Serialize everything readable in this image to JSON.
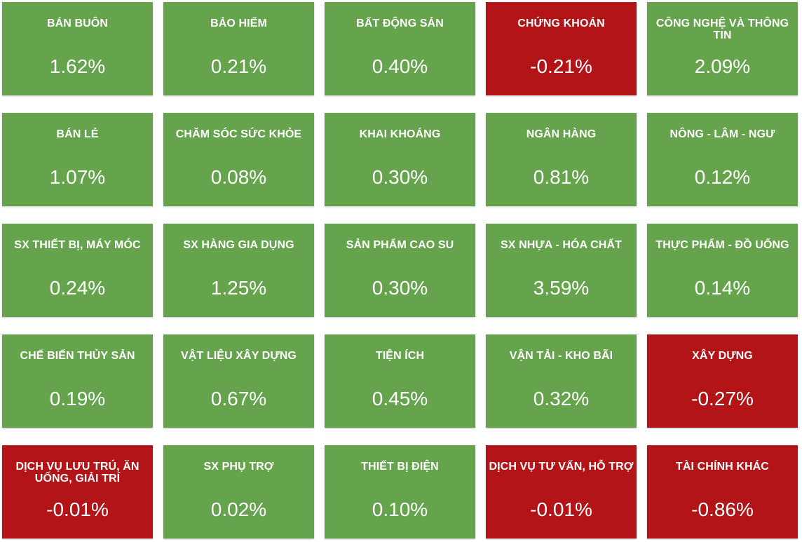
{
  "colors": {
    "up": "#65a34c",
    "down": "#b21417",
    "text": "#ffffff"
  },
  "sectors": [
    {
      "name": "BÁN BUÔN",
      "change": "1.62%",
      "direction": "up"
    },
    {
      "name": "BẢO HIỂM",
      "change": "0.21%",
      "direction": "up"
    },
    {
      "name": "BẤT ĐỘNG SẢN",
      "change": "0.40%",
      "direction": "up"
    },
    {
      "name": "CHỨNG KHOÁN",
      "change": "-0.21%",
      "direction": "down"
    },
    {
      "name": "CÔNG NGHỆ VÀ THÔNG TIN",
      "change": "2.09%",
      "direction": "up"
    },
    {
      "name": "BÁN LẺ",
      "change": "1.07%",
      "direction": "up"
    },
    {
      "name": "CHĂM SÓC SỨC KHỎE",
      "change": "0.08%",
      "direction": "up"
    },
    {
      "name": "KHAI KHOÁNG",
      "change": "0.30%",
      "direction": "up"
    },
    {
      "name": "NGÂN HÀNG",
      "change": "0.81%",
      "direction": "up"
    },
    {
      "name": "NÔNG - LÂM - NGƯ",
      "change": "0.12%",
      "direction": "up"
    },
    {
      "name": "SX THIẾT BỊ, MÁY MÓC",
      "change": "0.24%",
      "direction": "up"
    },
    {
      "name": "SX HÀNG GIA DỤNG",
      "change": "1.25%",
      "direction": "up"
    },
    {
      "name": "SẢN PHẨM CAO SU",
      "change": "0.30%",
      "direction": "up"
    },
    {
      "name": "SX NHỰA - HÓA CHẤT",
      "change": "3.59%",
      "direction": "up"
    },
    {
      "name": "THỰC PHẨM - ĐỒ UỐNG",
      "change": "0.14%",
      "direction": "up"
    },
    {
      "name": "CHẾ BIẾN THỦY SẢN",
      "change": "0.19%",
      "direction": "up"
    },
    {
      "name": "VẬT LIỆU XÂY DỰNG",
      "change": "0.67%",
      "direction": "up"
    },
    {
      "name": "TIỆN ÍCH",
      "change": "0.45%",
      "direction": "up"
    },
    {
      "name": "VẬN TẢI - KHO BÃI",
      "change": "0.32%",
      "direction": "up"
    },
    {
      "name": "XÂY DỰNG",
      "change": "-0.27%",
      "direction": "down"
    },
    {
      "name": "DỊCH VỤ LƯU TRÚ, ĂN UỐNG, GIẢI TRÍ",
      "change": "-0.01%",
      "direction": "down"
    },
    {
      "name": "SX PHỤ TRỢ",
      "change": "0.02%",
      "direction": "up"
    },
    {
      "name": "THIẾT BỊ ĐIỆN",
      "change": "0.10%",
      "direction": "up"
    },
    {
      "name": "DỊCH VỤ TƯ VẤN, HỖ TRỢ",
      "change": "-0.01%",
      "direction": "down"
    },
    {
      "name": "TÀI CHÍNH KHÁC",
      "change": "-0.86%",
      "direction": "down"
    }
  ]
}
